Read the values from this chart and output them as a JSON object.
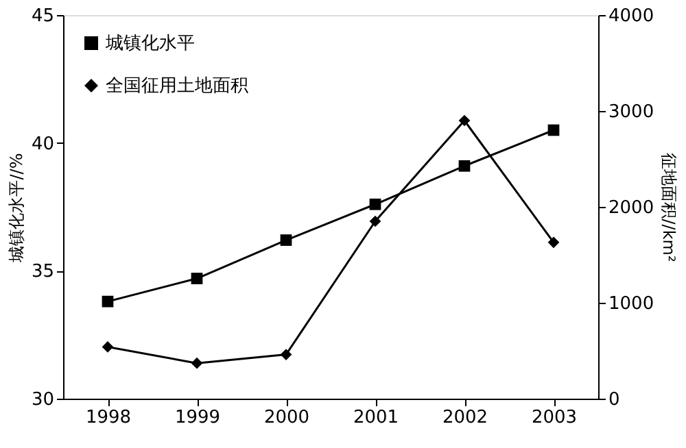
{
  "chart_data": {
    "type": "line",
    "categories": [
      "1998",
      "1999",
      "2000",
      "2001",
      "2002",
      "2003"
    ],
    "ylabel": "城镇化水平//%",
    "y2label": "征地面积//km²",
    "ylim": [
      30,
      45
    ],
    "yticks": [
      30,
      35,
      40,
      45
    ],
    "y2lim": [
      0,
      4000
    ],
    "y2ticks": [
      0,
      1000,
      2000,
      3000,
      4000
    ],
    "series": [
      {
        "name": "城镇化水平",
        "color": "#000000",
        "marker": "square",
        "values": [
          33.8,
          34.7,
          36.2,
          37.6,
          39.1,
          40.5
        ]
      },
      {
        "name": "全国征用土地面积",
        "color": "#000000",
        "marker": "diamond",
        "axis": "y2",
        "values": [
          540,
          370,
          460,
          1850,
          2900,
          1630
        ]
      }
    ],
    "grid": false,
    "legend": "top left",
    "line_style": "solid"
  }
}
